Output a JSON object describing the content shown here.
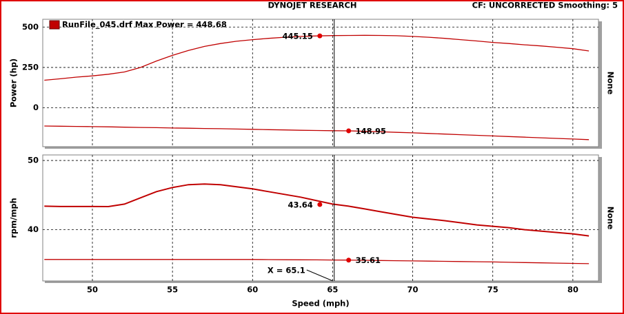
{
  "header": {
    "title": "DYNOJET RESEARCH",
    "settings": "CF: UNCORRECTED  Smoothing: 5"
  },
  "chart_data": [
    {
      "type": "line",
      "ylabel": "Power (hp)",
      "y2label": "None",
      "x": [
        47,
        48,
        49,
        50,
        51,
        52,
        53,
        54,
        55,
        56,
        57,
        58,
        59,
        60,
        61,
        62,
        63,
        64,
        65,
        66,
        67,
        68,
        69,
        70,
        71,
        72,
        73,
        74,
        75,
        76,
        77,
        78,
        79,
        80,
        81
      ],
      "xlim": [
        46.9,
        81.6
      ],
      "xticks": [
        50,
        55,
        60,
        65,
        70,
        75,
        80
      ],
      "ylim": [
        -240,
        548
      ],
      "yticks": [
        0,
        250,
        500
      ],
      "y2lim": [
        133.6,
        257
      ],
      "grid": true,
      "series": [
        {
          "name": "RunFile_045.drf Max Power = 448.68",
          "color": "#c00000",
          "values": [
            171,
            180,
            190,
            198,
            208,
            222,
            250,
            290,
            325,
            355,
            380,
            398,
            412,
            422,
            430,
            437,
            442,
            445,
            447,
            448,
            448.68,
            448,
            446,
            442,
            437,
            430,
            422,
            414,
            405,
            398,
            390,
            383,
            375,
            366,
            352
          ]
        },
        {
          "color": "#c00000",
          "axis": "y2",
          "values": [
            153.6,
            153.4,
            153.2,
            153,
            152.8,
            152.5,
            152.2,
            152,
            151.7,
            151.5,
            151.2,
            151,
            150.7,
            150.4,
            150.1,
            149.8,
            149.5,
            149.3,
            149.1,
            148.95,
            148.5,
            148,
            147.5,
            147,
            146.4,
            145.8,
            145.2,
            144.6,
            144,
            143.4,
            142.8,
            142.2,
            141.6,
            141,
            140.4
          ]
        }
      ],
      "annotations": [
        {
          "x": 64.2,
          "y": 445.15
        },
        {
          "x": 66,
          "y": 148.95,
          "axis": "y2"
        }
      ]
    },
    {
      "type": "line",
      "ylabel": "rpm/mph",
      "y2label": "None",
      "xlabel": "Speed (mph)",
      "x": [
        47,
        48,
        49,
        50,
        51,
        52,
        53,
        54,
        55,
        56,
        57,
        58,
        59,
        60,
        61,
        62,
        63,
        64,
        65,
        66,
        67,
        68,
        69,
        70,
        71,
        72,
        73,
        74,
        75,
        76,
        77,
        78,
        79,
        80,
        81
      ],
      "xlim": [
        46.9,
        81.6
      ],
      "xticks": [
        50,
        55,
        60,
        65,
        70,
        75,
        80
      ],
      "ylim": [
        32.6,
        50.8
      ],
      "yticks": [
        40,
        50
      ],
      "grid": true,
      "series": [
        {
          "color": "#c00000",
          "values": [
            43.4,
            43.35,
            43.35,
            43.35,
            43.34,
            43.7,
            44.6,
            45.5,
            46.1,
            46.5,
            46.6,
            46.5,
            46.2,
            45.9,
            45.5,
            45.1,
            44.7,
            44.2,
            43.7,
            43.4,
            43.0,
            42.6,
            42.2,
            41.8,
            41.55,
            41.3,
            41.0,
            40.7,
            40.5,
            40.3,
            40.0,
            39.8,
            39.6,
            39.4,
            39.1
          ]
        },
        {
          "color": "#c00000",
          "values": [
            35.7,
            35.7,
            35.7,
            35.7,
            35.7,
            35.7,
            35.7,
            35.7,
            35.7,
            35.7,
            35.7,
            35.7,
            35.7,
            35.7,
            35.68,
            35.66,
            35.65,
            35.64,
            35.62,
            35.61,
            35.58,
            35.55,
            35.52,
            35.49,
            35.46,
            35.43,
            35.4,
            35.37,
            35.34,
            35.3,
            35.26,
            35.22,
            35.18,
            35.14,
            35.1
          ]
        }
      ],
      "annotations": [
        {
          "x": 64.2,
          "y": 43.64
        },
        {
          "x": 66,
          "y": 35.61
        }
      ],
      "cursor": {
        "value": 65.1,
        "label": "X = 65.1"
      }
    }
  ]
}
